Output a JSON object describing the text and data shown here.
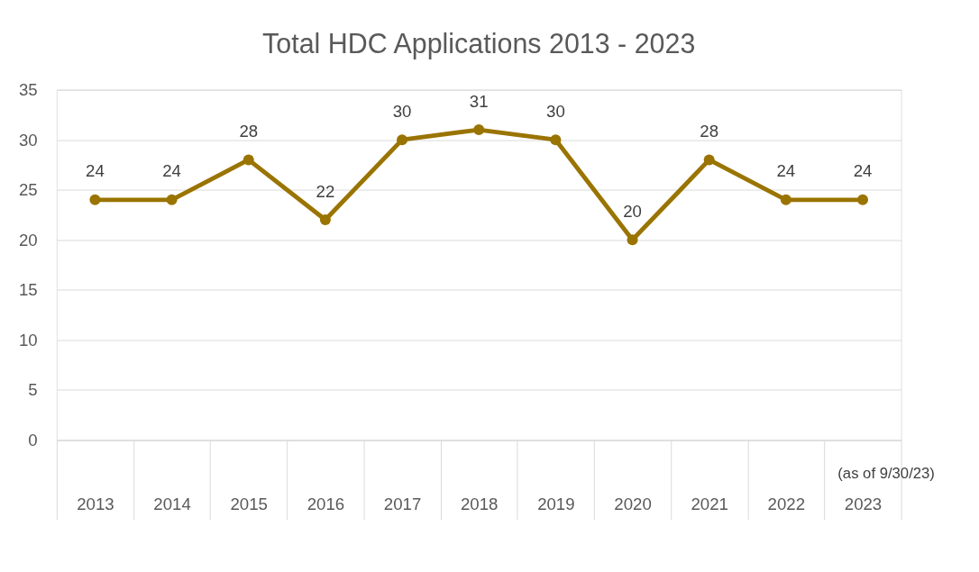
{
  "chart_data": {
    "type": "line",
    "title": "Total HDC Applications 2013 - 2023",
    "categories": [
      "2013",
      "2014",
      "2015",
      "2016",
      "2017",
      "2018",
      "2019",
      "2020",
      "2021",
      "2022",
      "2023"
    ],
    "series": [
      {
        "color": "#9a7400",
        "values": [
          24,
          24,
          28,
          22,
          30,
          31,
          30,
          20,
          28,
          24,
          24
        ]
      }
    ],
    "ylim": [
      0,
      35
    ],
    "yticks": [
      0,
      5,
      10,
      15,
      20,
      25,
      30,
      35
    ],
    "grid": "y",
    "marker": "circle",
    "line_style": "solid",
    "data_labels": true,
    "annotations": [
      "(as of 9/30/23)"
    ]
  }
}
